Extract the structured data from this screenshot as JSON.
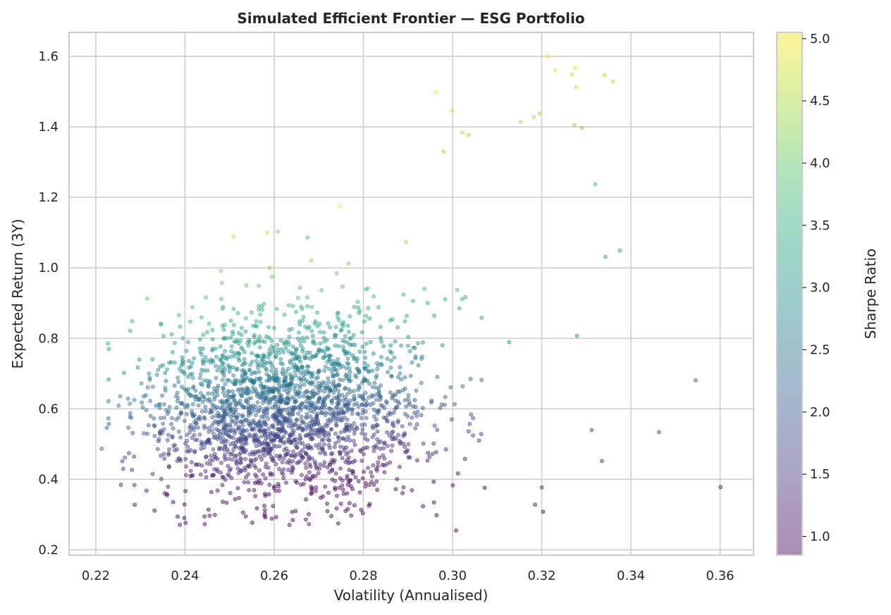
{
  "chart_data": {
    "type": "scatter",
    "title": "Simulated Efficient Frontier — ESG Portfolio",
    "xlabel": "Volatility (Annualised)",
    "ylabel": "Expected Return (3Y)",
    "xlim": [
      0.214,
      0.3675
    ],
    "ylim": [
      0.185,
      1.668
    ],
    "xticks": [
      "0.22",
      "0.24",
      "0.26",
      "0.28",
      "0.30",
      "0.32",
      "0.34",
      "0.36"
    ],
    "yticks": [
      "0.2",
      "0.4",
      "0.6",
      "0.8",
      "1.0",
      "1.2",
      "1.4",
      "1.6"
    ],
    "grid": true,
    "colorbar": {
      "label": "Sharpe Ratio",
      "colormap": "viridis",
      "range": [
        0.85,
        5.05
      ],
      "ticks": [
        "1.0",
        "1.5",
        "2.0",
        "2.5",
        "3.0",
        "3.5",
        "4.0",
        "4.5",
        "5.0"
      ]
    },
    "marker_alpha": 0.45,
    "highlighted_points": [
      {
        "x": 0.3213,
        "y": 1.601,
        "sharpe": 4.99
      },
      {
        "x": 0.3275,
        "y": 1.567,
        "sharpe": 4.79
      },
      {
        "x": 0.323,
        "y": 1.56,
        "sharpe": 4.82
      },
      {
        "x": 0.3341,
        "y": 1.547,
        "sharpe": 4.63
      },
      {
        "x": 0.336,
        "y": 1.529,
        "sharpe": 4.56
      },
      {
        "x": 0.3268,
        "y": 1.549,
        "sharpe": 4.73
      },
      {
        "x": 0.3277,
        "y": 1.513,
        "sharpe": 4.62
      },
      {
        "x": 0.2963,
        "y": 1.498,
        "sharpe": 5.0
      },
      {
        "x": 0.2999,
        "y": 1.446,
        "sharpe": 4.78
      },
      {
        "x": 0.3196,
        "y": 1.438,
        "sharpe": 4.48
      },
      {
        "x": 0.3182,
        "y": 1.428,
        "sharpe": 4.45
      },
      {
        "x": 0.3153,
        "y": 1.414,
        "sharpe": 4.44
      },
      {
        "x": 0.3273,
        "y": 1.405,
        "sharpe": 4.28
      },
      {
        "x": 0.329,
        "y": 1.397,
        "sharpe": 4.22
      },
      {
        "x": 0.3022,
        "y": 1.384,
        "sharpe": 4.53
      },
      {
        "x": 0.3036,
        "y": 1.377,
        "sharpe": 4.49
      },
      {
        "x": 0.298,
        "y": 1.33,
        "sharpe": 4.42
      },
      {
        "x": 0.332,
        "y": 1.237,
        "sharpe": 3.74
      },
      {
        "x": 0.2608,
        "y": 1.103,
        "sharpe": 4.2
      },
      {
        "x": 0.2675,
        "y": 1.086,
        "sharpe": 3.9
      },
      {
        "x": 0.3375,
        "y": 1.049,
        "sharpe": 3.1
      },
      {
        "x": 0.3343,
        "y": 1.031,
        "sharpe": 3.09
      },
      {
        "x": 0.3545,
        "y": 0.681,
        "sharpe": 1.94
      },
      {
        "x": 0.3463,
        "y": 0.534,
        "sharpe": 1.55
      },
      {
        "x": 0.3601,
        "y": 0.378,
        "sharpe": 1.05
      },
      {
        "x": 0.3312,
        "y": 0.54,
        "sharpe": 1.63
      },
      {
        "x": 0.3335,
        "y": 0.452,
        "sharpe": 1.36
      },
      {
        "x": 0.3008,
        "y": 0.255,
        "sharpe": 0.85
      },
      {
        "x": 0.2678,
        "y": 0.273,
        "sharpe": 1.02
      },
      {
        "x": 0.2213,
        "y": 0.487,
        "sharpe": 2.2
      },
      {
        "x": 0.2395,
        "y": 0.8,
        "sharpe": 3.34
      },
      {
        "x": 0.2377,
        "y": 0.787,
        "sharpe": 3.31
      },
      {
        "x": 0.3203,
        "y": 0.308,
        "sharpe": 0.96
      },
      {
        "x": 0.3185,
        "y": 0.328,
        "sharpe": 1.03
      },
      {
        "x": 0.32,
        "y": 0.377,
        "sharpe": 1.18
      }
    ],
    "cloud": {
      "count": 2300,
      "seed": 7,
      "volatility_mean": 0.262,
      "volatility_sd": 0.0155,
      "return_center": 0.585,
      "return_slope": 6.0,
      "return_sd": 0.135,
      "return_range": [
        0.27,
        1.2
      ]
    }
  }
}
